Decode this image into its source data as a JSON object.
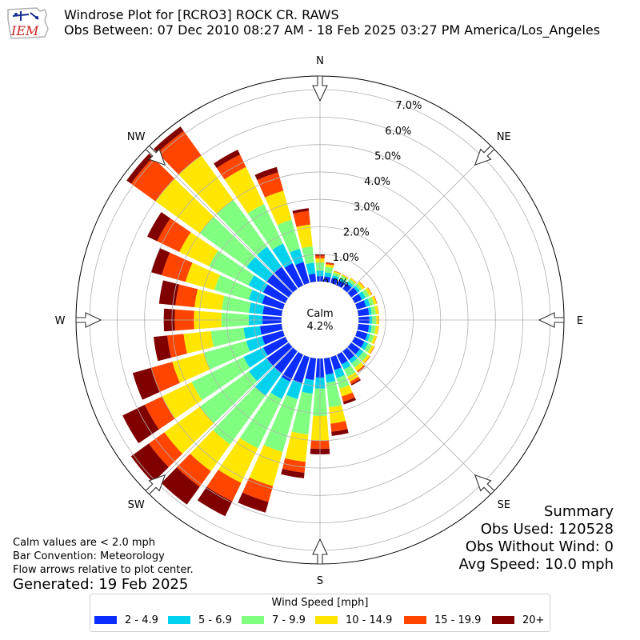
{
  "header": {
    "logo_text": "IEM",
    "title_line1": "Windrose Plot for [RCRO3] ROCK CR. RAWS",
    "title_line2": "Obs Between: 07 Dec 2010 08:27 AM - 18 Feb 2025 03:27 PM America/Los_Angeles"
  },
  "summary": {
    "heading": "Summary",
    "obs_used": "Obs Used: 120528",
    "obs_without_wind": "Obs Without Wind: 0",
    "avg_speed": "Avg Speed: 10.0 mph"
  },
  "notes": {
    "calm_note": "Calm values are < 2.0 mph",
    "bar_convention": "Bar Convention: Meteorology",
    "flow_arrows": "Flow arrows relative to plot center."
  },
  "generated": "Generated: 19 Feb 2025",
  "chart_data": {
    "type": "windrose",
    "calm_label": "Calm",
    "calm_value": "4.2%",
    "radial_unit": "%",
    "radial_ticks": [
      0,
      1,
      2,
      3,
      4,
      5,
      6,
      7
    ],
    "radial_tick_labels": [
      "0.0%",
      "1.0%",
      "2.0%",
      "3.0%",
      "4.0%",
      "5.0%",
      "6.0%",
      "7.0%"
    ],
    "rmax": 7.5,
    "grid": true,
    "compass_labels": [
      {
        "label": "N",
        "deg": 0
      },
      {
        "label": "NE",
        "deg": 45
      },
      {
        "label": "E",
        "deg": 90
      },
      {
        "label": "SE",
        "deg": 135
      },
      {
        "label": "S",
        "deg": 180
      },
      {
        "label": "SW",
        "deg": 225
      },
      {
        "label": "W",
        "deg": 270
      },
      {
        "label": "NW",
        "deg": 315
      }
    ],
    "legend_title": "Wind Speed [mph]",
    "speed_bins": [
      {
        "label": "2 - 4.9",
        "color": "#0b2eff"
      },
      {
        "label": "5 - 6.9",
        "color": "#00d2ee"
      },
      {
        "label": "7 - 9.9",
        "color": "#80ff80"
      },
      {
        "label": "10 - 14.9",
        "color": "#ffe600"
      },
      {
        "label": "15 - 19.9",
        "color": "#ff4500"
      },
      {
        "label": "20+",
        "color": "#800000"
      }
    ],
    "directions_deg": [
      0,
      10,
      20,
      30,
      40,
      50,
      60,
      70,
      80,
      90,
      100,
      110,
      120,
      130,
      140,
      150,
      160,
      170,
      180,
      190,
      200,
      210,
      220,
      230,
      240,
      250,
      260,
      270,
      280,
      290,
      300,
      310,
      320,
      330,
      340,
      350
    ],
    "cumulative_percent": [
      [
        0.2,
        0.4,
        0.7,
        0.85,
        0.95,
        1.0
      ],
      [
        0.2,
        0.35,
        0.55,
        0.65,
        0.7,
        0.72
      ],
      [
        0.2,
        0.3,
        0.4,
        0.45,
        0.47,
        0.47
      ],
      [
        0.2,
        0.3,
        0.4,
        0.45,
        0.46,
        0.46
      ],
      [
        0.25,
        0.35,
        0.45,
        0.5,
        0.51,
        0.51
      ],
      [
        0.3,
        0.4,
        0.5,
        0.6,
        0.62,
        0.62
      ],
      [
        0.3,
        0.45,
        0.6,
        0.7,
        0.72,
        0.72
      ],
      [
        0.35,
        0.5,
        0.65,
        0.75,
        0.77,
        0.77
      ],
      [
        0.4,
        0.5,
        0.65,
        0.75,
        0.76,
        0.76
      ],
      [
        0.4,
        0.5,
        0.65,
        0.75,
        0.76,
        0.76
      ],
      [
        0.4,
        0.5,
        0.65,
        0.75,
        0.76,
        0.76
      ],
      [
        0.4,
        0.5,
        0.65,
        0.75,
        0.76,
        0.76
      ],
      [
        0.4,
        0.55,
        0.7,
        0.8,
        0.82,
        0.82
      ],
      [
        0.4,
        0.55,
        0.75,
        0.85,
        0.87,
        0.87
      ],
      [
        0.4,
        0.55,
        0.75,
        0.9,
        0.95,
        0.96
      ],
      [
        0.4,
        0.6,
        0.9,
        1.1,
        1.2,
        1.25
      ],
      [
        0.5,
        0.8,
        1.2,
        1.5,
        1.7,
        1.8
      ],
      [
        0.6,
        0.9,
        1.8,
        2.4,
        2.7,
        2.85
      ],
      [
        0.7,
        1.1,
        2.1,
        3.0,
        3.3,
        3.5
      ],
      [
        0.8,
        1.3,
        2.8,
        3.8,
        4.2,
        4.4
      ],
      [
        1.0,
        1.6,
        3.6,
        4.9,
        5.5,
        5.9
      ],
      [
        1.1,
        1.8,
        3.8,
        5.2,
        5.95,
        6.55
      ],
      [
        1.0,
        2.0,
        4.2,
        5.4,
        6.1,
        6.9
      ],
      [
        1.0,
        1.8,
        4.0,
        5.6,
        6.3,
        7.1
      ],
      [
        0.9,
        1.7,
        3.8,
        5.0,
        5.7,
        6.6
      ],
      [
        0.8,
        1.4,
        3.0,
        4.2,
        5.0,
        5.7
      ],
      [
        0.8,
        1.4,
        2.6,
        3.6,
        4.2,
        4.7
      ],
      [
        0.7,
        1.2,
        2.2,
        3.2,
        3.9,
        4.3
      ],
      [
        0.7,
        1.2,
        2.2,
        3.2,
        3.9,
        4.5
      ],
      [
        0.8,
        1.3,
        2.6,
        3.7,
        4.6,
        5.0
      ],
      [
        0.9,
        1.5,
        3.1,
        4.3,
        5.2,
        5.6
      ],
      [
        1.0,
        1.9,
        4.0,
        6.0,
        7.1,
        7.3
      ],
      [
        1.0,
        1.9,
        4.0,
        6.0,
        7.1,
        7.3
      ],
      [
        0.9,
        1.7,
        3.3,
        4.8,
        5.3,
        5.5
      ],
      [
        0.8,
        1.3,
        2.4,
        3.5,
        4.2,
        4.4
      ],
      [
        0.3,
        0.7,
        1.3,
        2.1,
        2.6,
        2.7
      ]
    ]
  }
}
